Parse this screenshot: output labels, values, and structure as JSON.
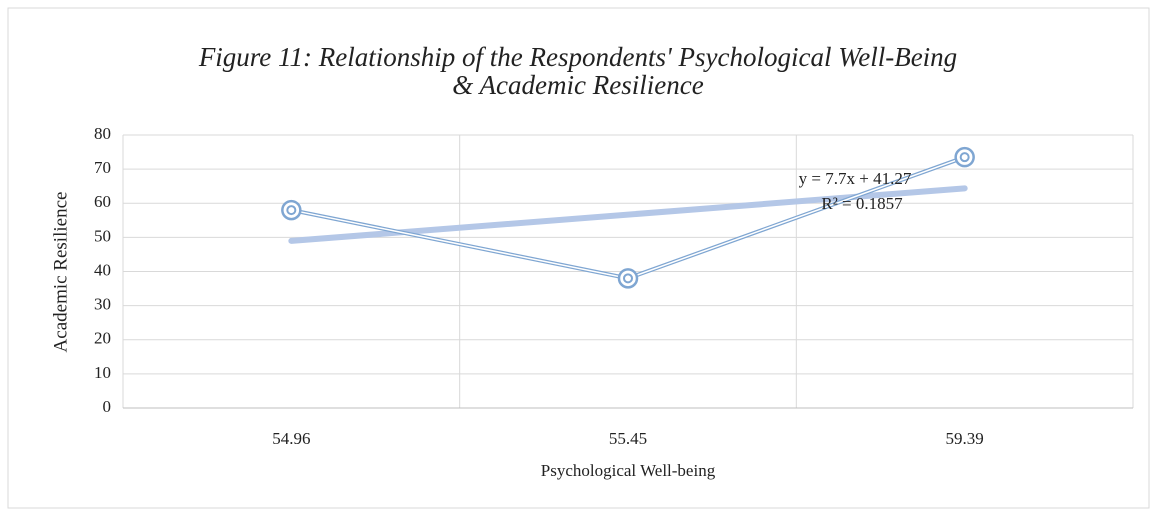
{
  "chart_data": {
    "type": "line",
    "title": "Figure 11: Relationship of the Respondents' Psychological Well-Being",
    "subtitle": "& Academic Resilience",
    "x_label": "Psychological Well-being",
    "y_label": "Academic Resilience",
    "categories": [
      "54.96",
      "55.45",
      "59.39"
    ],
    "series": [
      {
        "name": "Academic Resilience",
        "color": "#7fa6d2",
        "values": [
          58,
          38,
          73.5
        ]
      }
    ],
    "trendline": {
      "slope": 7.7,
      "intercept": 41.27,
      "color": "#b4c7e7",
      "label": "y = 7.7x + 41.27",
      "r2_label": "R² = 0.1857"
    },
    "ylim": [
      0,
      80
    ],
    "yticks": [
      0,
      10,
      20,
      30,
      40,
      50,
      60,
      70,
      80
    ],
    "grid": true
  }
}
